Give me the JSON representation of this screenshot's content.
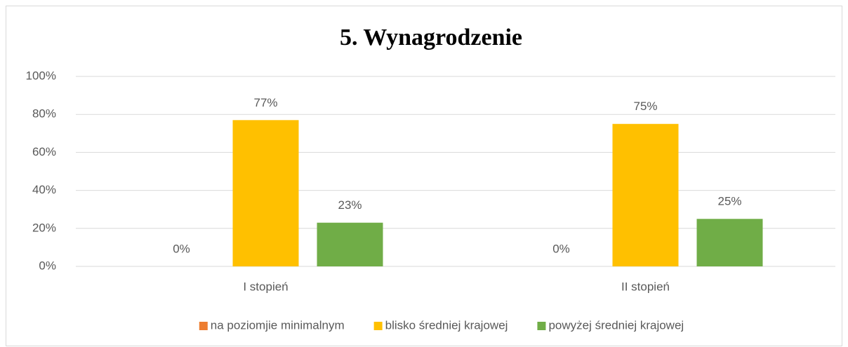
{
  "chart_data": {
    "type": "bar",
    "title": "5. Wynagrodzenie",
    "categories": [
      "I stopień",
      "II stopień"
    ],
    "series": [
      {
        "name": "na poziomjie minimalnym",
        "color": "#ed7d31",
        "values": [
          0,
          0
        ],
        "value_labels": [
          "0%",
          "0%"
        ]
      },
      {
        "name": "blisko średniej krajowej",
        "color": "#ffc000",
        "values": [
          77,
          75
        ],
        "value_labels": [
          "77%",
          "75%"
        ]
      },
      {
        "name": "powyżej średniej krajowej",
        "color": "#70ad47",
        "values": [
          23,
          25
        ],
        "value_labels": [
          "23%",
          "25%"
        ]
      }
    ],
    "ylim": [
      0,
      100
    ],
    "yticks": [
      {
        "value": 0,
        "label": "0%"
      },
      {
        "value": 20,
        "label": "20%"
      },
      {
        "value": 40,
        "label": "40%"
      },
      {
        "value": 60,
        "label": "60%"
      },
      {
        "value": 80,
        "label": "80%"
      },
      {
        "value": 100,
        "label": "100%"
      }
    ],
    "grid": true,
    "legend": "bottom"
  }
}
